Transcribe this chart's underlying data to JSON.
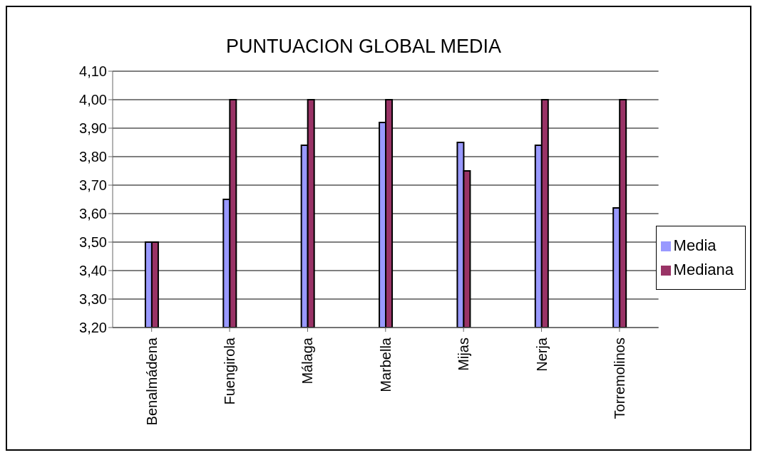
{
  "chart_data": {
    "type": "bar",
    "title": "PUNTUACION GLOBAL MEDIA",
    "categories": [
      "Benalmádena",
      "Fuengirola",
      "Málaga",
      "Marbella",
      "Mijas",
      "Nerja",
      "Torremolinos"
    ],
    "series": [
      {
        "name": "Media",
        "color": "#9999ff",
        "values": [
          3.5,
          3.65,
          3.84,
          3.92,
          3.85,
          3.84,
          3.62
        ]
      },
      {
        "name": "Mediana",
        "color": "#993366",
        "values": [
          3.5,
          4.0,
          4.0,
          4.0,
          3.75,
          4.0,
          4.0
        ]
      }
    ],
    "ylim": [
      3.2,
      4.1
    ],
    "yticks": [
      {
        "value": 3.2,
        "label": "3,20"
      },
      {
        "value": 3.3,
        "label": "3,30"
      },
      {
        "value": 3.4,
        "label": "3,40"
      },
      {
        "value": 3.5,
        "label": "3,50"
      },
      {
        "value": 3.6,
        "label": "3,60"
      },
      {
        "value": 3.7,
        "label": "3,70"
      },
      {
        "value": 3.8,
        "label": "3,80"
      },
      {
        "value": 3.9,
        "label": "3,90"
      },
      {
        "value": 4.0,
        "label": "4,00"
      },
      {
        "value": 4.1,
        "label": "4,10"
      }
    ],
    "grid": "y",
    "legend": "right"
  }
}
